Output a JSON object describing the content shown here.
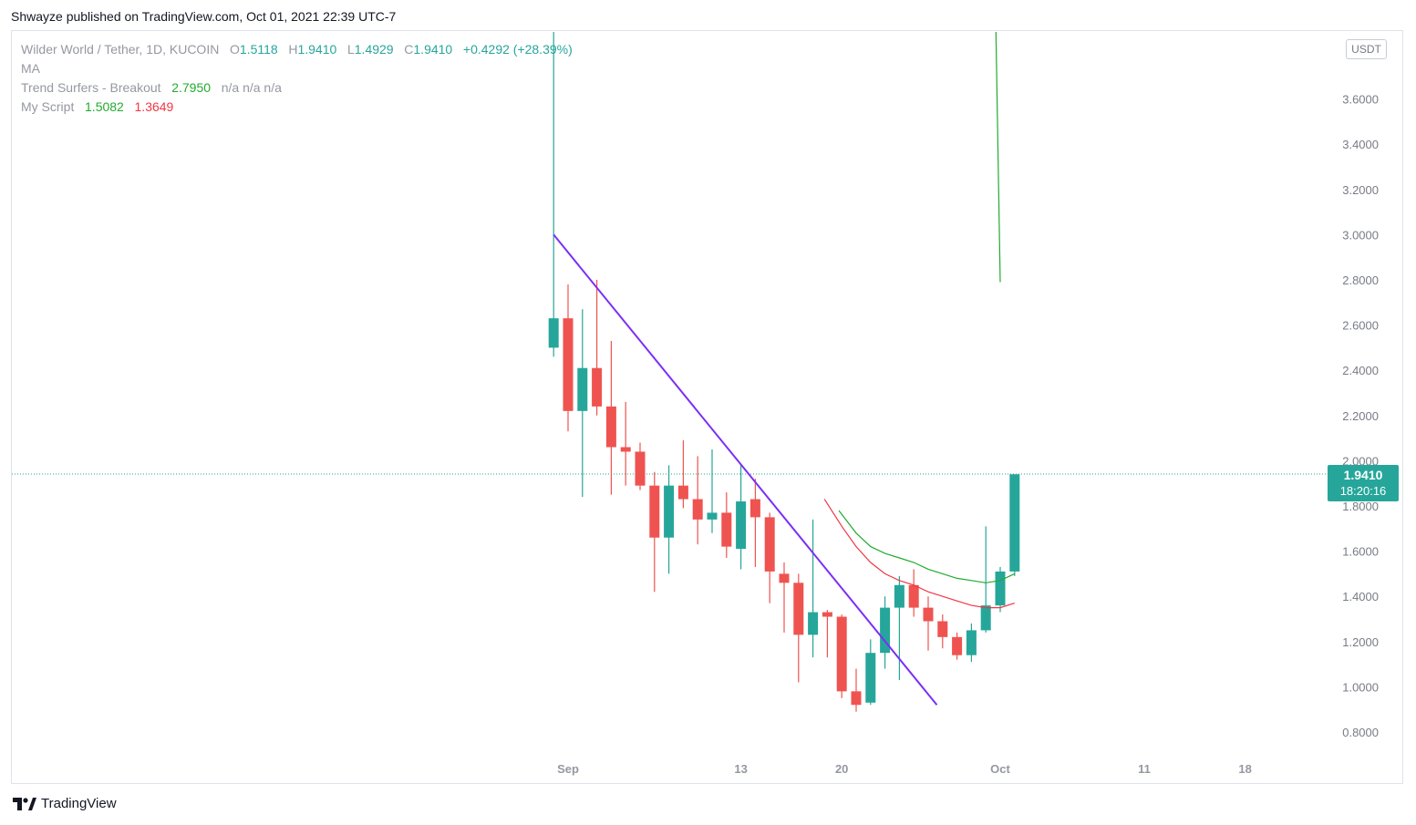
{
  "header": {
    "published": "Shwayze published on TradingView.com, Oct 01, 2021 22:39 UTC-7"
  },
  "legend": {
    "symbol": "Wilder World / Tether, 1D, KUCOIN",
    "o_label": "O",
    "o_value": "1.5118",
    "h_label": "H",
    "h_value": "1.9410",
    "l_label": "L",
    "l_value": "1.4929",
    "c_label": "C",
    "c_value": "1.9410",
    "change": "+0.4292 (+28.39%)",
    "ma": "MA",
    "trend_name": "Trend Surfers - Breakout",
    "trend_value": "2.7950",
    "trend_na": "n/a  n/a  n/a",
    "script_name": "My Script",
    "script_value1": "1.5082",
    "script_value2": "1.3649"
  },
  "unit": "USDT",
  "last_price": {
    "price": "1.9410",
    "countdown": "18:20:16"
  },
  "footer": {
    "brand": "TradingView"
  },
  "colors": {
    "up": "#26a69a",
    "down": "#ef5350",
    "trendline": "#7b2ff7",
    "ma_green": "#22ab2f",
    "ma_red": "#f23645"
  },
  "chart_data": {
    "type": "candlestick",
    "y_ticks": [
      "0.8000",
      "1.0000",
      "1.2000",
      "1.4000",
      "1.6000",
      "1.8000",
      "2.0000",
      "2.2000",
      "2.4000",
      "2.6000",
      "2.8000",
      "3.0000",
      "3.2000",
      "3.4000",
      "3.6000"
    ],
    "ylim": [
      0.72,
      3.95
    ],
    "x_tick_labels": [
      {
        "label": "Sep",
        "day": 0
      },
      {
        "label": "13",
        "day": 12
      },
      {
        "label": "20",
        "day": 19
      },
      {
        "label": "Oct",
        "day": 30
      },
      {
        "label": "11",
        "day": 40
      },
      {
        "label": "18",
        "day": 47
      }
    ],
    "candles": [
      {
        "day": -1,
        "o": 2.5,
        "h": 3.95,
        "l": 2.46,
        "c": 2.63
      },
      {
        "day": 0,
        "o": 2.63,
        "h": 2.78,
        "l": 2.13,
        "c": 2.22
      },
      {
        "day": 1,
        "o": 2.22,
        "h": 2.67,
        "l": 1.84,
        "c": 2.41
      },
      {
        "day": 2,
        "o": 2.41,
        "h": 2.8,
        "l": 2.2,
        "c": 2.24
      },
      {
        "day": 3,
        "o": 2.24,
        "h": 2.53,
        "l": 1.85,
        "c": 2.06
      },
      {
        "day": 4,
        "o": 2.06,
        "h": 2.26,
        "l": 1.89,
        "c": 2.04
      },
      {
        "day": 5,
        "o": 2.04,
        "h": 2.08,
        "l": 1.87,
        "c": 1.89
      },
      {
        "day": 6,
        "o": 1.89,
        "h": 1.95,
        "l": 1.42,
        "c": 1.66
      },
      {
        "day": 7,
        "o": 1.66,
        "h": 1.98,
        "l": 1.5,
        "c": 1.89
      },
      {
        "day": 8,
        "o": 1.89,
        "h": 2.09,
        "l": 1.79,
        "c": 1.83
      },
      {
        "day": 9,
        "o": 1.83,
        "h": 2.02,
        "l": 1.63,
        "c": 1.74
      },
      {
        "day": 10,
        "o": 1.74,
        "h": 2.05,
        "l": 1.68,
        "c": 1.77
      },
      {
        "day": 11,
        "o": 1.77,
        "h": 1.86,
        "l": 1.57,
        "c": 1.62
      },
      {
        "day": 12,
        "o": 1.61,
        "h": 1.98,
        "l": 1.52,
        "c": 1.82
      },
      {
        "day": 13,
        "o": 1.83,
        "h": 1.92,
        "l": 1.53,
        "c": 1.75
      },
      {
        "day": 14,
        "o": 1.75,
        "h": 1.77,
        "l": 1.37,
        "c": 1.51
      },
      {
        "day": 15,
        "o": 1.5,
        "h": 1.55,
        "l": 1.24,
        "c": 1.46
      },
      {
        "day": 16,
        "o": 1.46,
        "h": 1.5,
        "l": 1.02,
        "c": 1.23
      },
      {
        "day": 17,
        "o": 1.23,
        "h": 1.74,
        "l": 1.13,
        "c": 1.33
      },
      {
        "day": 18,
        "o": 1.33,
        "h": 1.34,
        "l": 1.13,
        "c": 1.31
      },
      {
        "day": 19,
        "o": 1.31,
        "h": 1.32,
        "l": 0.95,
        "c": 0.98
      },
      {
        "day": 20,
        "o": 0.98,
        "h": 1.08,
        "l": 0.89,
        "c": 0.92
      },
      {
        "day": 21,
        "o": 0.93,
        "h": 1.21,
        "l": 0.92,
        "c": 1.15
      },
      {
        "day": 22,
        "o": 1.15,
        "h": 1.4,
        "l": 1.08,
        "c": 1.35
      },
      {
        "day": 23,
        "o": 1.35,
        "h": 1.49,
        "l": 1.03,
        "c": 1.45
      },
      {
        "day": 24,
        "o": 1.45,
        "h": 1.52,
        "l": 1.31,
        "c": 1.35
      },
      {
        "day": 25,
        "o": 1.35,
        "h": 1.4,
        "l": 1.16,
        "c": 1.29
      },
      {
        "day": 26,
        "o": 1.29,
        "h": 1.32,
        "l": 1.17,
        "c": 1.22
      },
      {
        "day": 27,
        "o": 1.22,
        "h": 1.24,
        "l": 1.12,
        "c": 1.14
      },
      {
        "day": 28,
        "o": 1.14,
        "h": 1.28,
        "l": 1.11,
        "c": 1.25
      },
      {
        "day": 29,
        "o": 1.25,
        "h": 1.71,
        "l": 1.24,
        "c": 1.36
      },
      {
        "day": 30,
        "o": 1.36,
        "h": 1.53,
        "l": 1.33,
        "c": 1.51
      },
      {
        "day": 31,
        "o": 1.51,
        "h": 1.94,
        "l": 1.49,
        "c": 1.94
      }
    ],
    "trendline": {
      "from": {
        "day": -1,
        "value": 3.0
      },
      "to": {
        "day": 25.6,
        "value": 0.92
      }
    },
    "ma_lines": [
      {
        "color": "#22ab2f",
        "points": [
          {
            "day": 18.8,
            "value": 1.78
          },
          {
            "day": 20,
            "value": 1.68
          },
          {
            "day": 21,
            "value": 1.62
          },
          {
            "day": 22,
            "value": 1.59
          },
          {
            "day": 23,
            "value": 1.57
          },
          {
            "day": 24,
            "value": 1.55
          },
          {
            "day": 25,
            "value": 1.52
          },
          {
            "day": 26,
            "value": 1.5
          },
          {
            "day": 27,
            "value": 1.48
          },
          {
            "day": 28,
            "value": 1.47
          },
          {
            "day": 29,
            "value": 1.46
          },
          {
            "day": 30,
            "value": 1.47
          },
          {
            "day": 31,
            "value": 1.5
          }
        ]
      },
      {
        "color": "#f23645",
        "points": [
          {
            "day": 17.8,
            "value": 1.83
          },
          {
            "day": 19,
            "value": 1.71
          },
          {
            "day": 20,
            "value": 1.62
          },
          {
            "day": 21,
            "value": 1.55
          },
          {
            "day": 22,
            "value": 1.5
          },
          {
            "day": 23,
            "value": 1.47
          },
          {
            "day": 24,
            "value": 1.45
          },
          {
            "day": 25,
            "value": 1.42
          },
          {
            "day": 26,
            "value": 1.4
          },
          {
            "day": 27,
            "value": 1.38
          },
          {
            "day": 28,
            "value": 1.36
          },
          {
            "day": 29,
            "value": 1.35
          },
          {
            "day": 30,
            "value": 1.35
          },
          {
            "day": 31,
            "value": 1.37
          }
        ]
      },
      {
        "color": "#22ab2f",
        "points": [
          {
            "day": 29.7,
            "value": 3.95
          },
          {
            "day": 30,
            "value": 2.79
          }
        ]
      }
    ],
    "last_value": 1.941
  }
}
